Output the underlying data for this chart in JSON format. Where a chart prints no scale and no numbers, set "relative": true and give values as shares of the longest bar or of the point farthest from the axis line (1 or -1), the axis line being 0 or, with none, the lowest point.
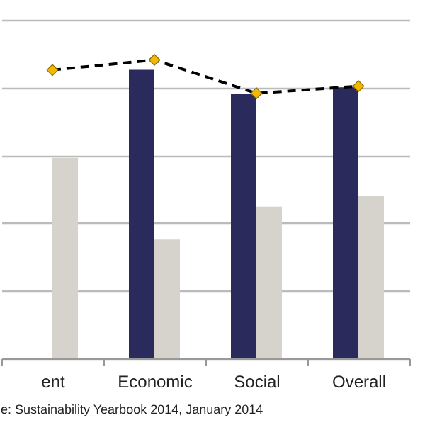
{
  "chart_data": {
    "type": "bar",
    "relative": true,
    "categories": [
      "ent",
      "Economic",
      "Social",
      "Overall"
    ],
    "series": [
      {
        "color": "#2a2a5c",
        "values": [
          null,
          0.967,
          0.887,
          0.908
        ]
      },
      {
        "color": "#d6d3cc",
        "values": [
          0.672,
          0.398,
          0.508,
          0.543
        ]
      },
      {
        "type": "line",
        "color": "#000000",
        "line_style": "dashed",
        "marker": "diamond",
        "values": [
          0.966,
          1,
          0.888,
          0.912
        ]
      }
    ],
    "grid": "y",
    "annotations": [
      "e: Sustainability Yearbook 2014, January 2014"
    ]
  }
}
